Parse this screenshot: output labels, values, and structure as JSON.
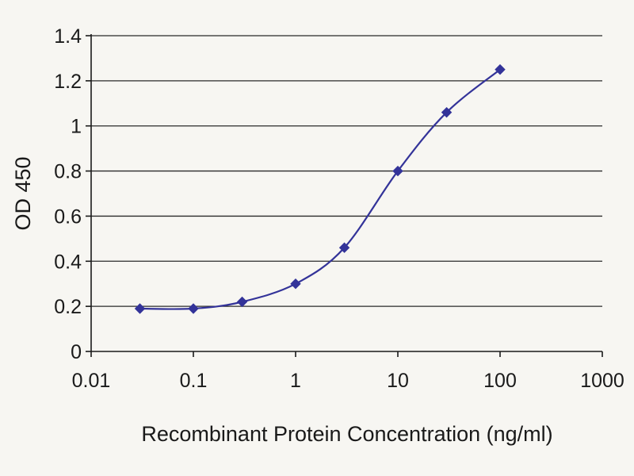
{
  "chart_data": {
    "type": "line",
    "title": "",
    "xlabel": "Recombinant Protein Concentration (ng/ml)",
    "ylabel": "OD 450",
    "x_scale": "log",
    "xlim": [
      0.01,
      1000
    ],
    "ylim": [
      0,
      1.4
    ],
    "x_ticks": [
      0.01,
      0.1,
      1,
      10,
      100,
      1000
    ],
    "x_tick_labels": [
      "0.01",
      "0.1",
      "1",
      "10",
      "100",
      "1000"
    ],
    "y_ticks": [
      0,
      0.2,
      0.4,
      0.6,
      0.8,
      1,
      1.2,
      1.4
    ],
    "y_tick_labels": [
      "0",
      "0.2",
      "0.4",
      "0.6",
      "0.8",
      "1",
      "1.2",
      "1.4"
    ],
    "grid": "horizontal",
    "legend": "none",
    "series": [
      {
        "name": "OD 450",
        "x": [
          0.03,
          0.1,
          0.3,
          1,
          3,
          10,
          30,
          100
        ],
        "y": [
          0.19,
          0.19,
          0.22,
          0.3,
          0.46,
          0.8,
          1.06,
          1.25
        ],
        "color": "#333399",
        "marker": "diamond"
      }
    ],
    "colors": {
      "line": "#333399",
      "grid": "#2a2a2a",
      "axis": "#1a1a1a",
      "background": "#f7f6f2"
    }
  }
}
